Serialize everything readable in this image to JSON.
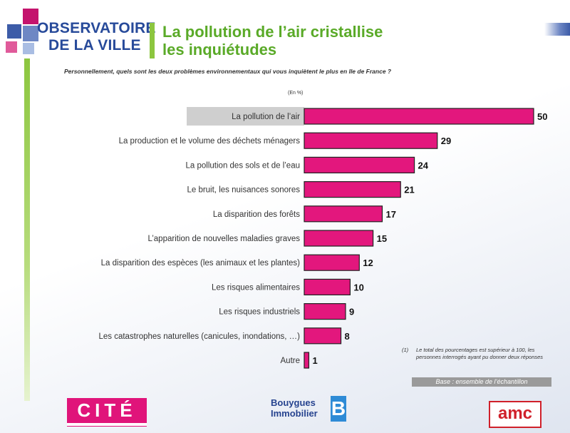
{
  "brand": {
    "line1": "OBSERVATOIRE",
    "line2": "DE LA VILLE"
  },
  "title": {
    "line1": "La pollution de l’air cristallise",
    "line2": "les inquiétudes"
  },
  "question": "Personnellement, quels sont les deux problèmes environnementaux qui vous inquiètent le plus en Ile de France ?",
  "unit_label": "(En %)",
  "chart_data": {
    "type": "bar",
    "orientation": "horizontal",
    "categories": [
      "La pollution de l’air",
      "La production et le volume des déchets ménagers",
      "La pollution des sols et de l’eau",
      "Le bruit, les nuisances sonores",
      "La disparition des forêts",
      "L’apparition de nouvelles maladies graves",
      "La disparition des espèces (les animaux et les plantes)",
      "Les risques alimentaires",
      "Les risques industriels",
      "Les catastrophes naturelles (canicules, inondations, …)",
      "Autre"
    ],
    "values": [
      50,
      29,
      24,
      21,
      17,
      15,
      12,
      10,
      9,
      8,
      1
    ],
    "highlighted_index": 0,
    "xlim": [
      0,
      50
    ],
    "bar_color": "#e3177d",
    "highlight_color": "#cfcfcf",
    "grid": false
  },
  "footnote": {
    "number": "(1)",
    "text": "Le total des pourcentages est supérieur à 100, les personnes interrogés ayant pu donner deux réponses"
  },
  "base_label": "Base : ensemble de l’échantillon",
  "logos": {
    "cite": "CITÉ",
    "bouygues_line1": "Bouygues",
    "bouygues_line2": "Immobilier",
    "bouygues_mark": "B",
    "amc": "amc"
  },
  "colors": {
    "brand_blue": "#274a9a",
    "title_green": "#5aaa28",
    "bar_magenta": "#e3177d"
  }
}
